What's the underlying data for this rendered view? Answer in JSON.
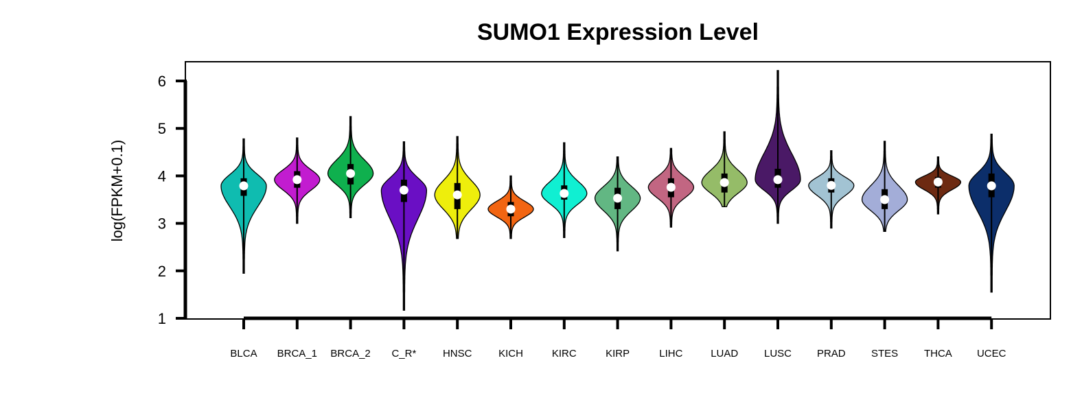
{
  "chart_data": {
    "type": "violin",
    "title": "SUMO1 Expression Level",
    "xlabel": "",
    "ylabel": "log(FPKM+0.1)",
    "ylim": [
      1,
      6.4
    ],
    "yticks": [
      "1",
      "2",
      "3",
      "4",
      "5",
      "6"
    ],
    "grid": false,
    "legend": "none",
    "categories": [
      "BLCA",
      "BRCA_1",
      "BRCA_2",
      "C_R*",
      "HNSC",
      "KICH",
      "KIRC",
      "KIRP",
      "LIHC",
      "LUAD",
      "LUSC",
      "PRAD",
      "STES",
      "THCA",
      "UCEC"
    ],
    "series": [
      {
        "category": "BLCA",
        "color": "#0fbcb0",
        "min": 1.95,
        "max": 4.78,
        "q1": 3.58,
        "q3": 3.95,
        "median": 3.79
      },
      {
        "category": "BRCA_1",
        "color": "#c21cd0",
        "min": 3.0,
        "max": 4.8,
        "q1": 3.75,
        "q3": 4.1,
        "median": 3.92
      },
      {
        "category": "BRCA_2",
        "color": "#0fb04e",
        "min": 3.12,
        "max": 5.25,
        "q1": 3.82,
        "q3": 4.25,
        "median": 4.05
      },
      {
        "category": "C_R*",
        "color": "#6a0fc4",
        "min": 1.17,
        "max": 4.72,
        "q1": 3.45,
        "q3": 3.92,
        "median": 3.7
      },
      {
        "category": "HNSC",
        "color": "#eeee0c",
        "min": 2.68,
        "max": 4.83,
        "q1": 3.3,
        "q3": 3.85,
        "median": 3.6
      },
      {
        "category": "KICH",
        "color": "#f26512",
        "min": 2.68,
        "max": 4.0,
        "q1": 3.15,
        "q3": 3.45,
        "median": 3.3
      },
      {
        "category": "KIRC",
        "color": "#10efd2",
        "min": 2.7,
        "max": 4.7,
        "q1": 3.5,
        "q3": 3.8,
        "median": 3.63
      },
      {
        "category": "KIRP",
        "color": "#62b783",
        "min": 2.42,
        "max": 4.4,
        "q1": 3.3,
        "q3": 3.75,
        "median": 3.53
      },
      {
        "category": "LIHC",
        "color": "#c26682",
        "min": 2.92,
        "max": 4.58,
        "q1": 3.55,
        "q3": 3.95,
        "median": 3.76
      },
      {
        "category": "LUAD",
        "color": "#95bc68",
        "min": 3.35,
        "max": 4.93,
        "q1": 3.65,
        "q3": 4.05,
        "median": 3.86
      },
      {
        "category": "LUSC",
        "color": "#4a1966",
        "min": 3.0,
        "max": 6.22,
        "q1": 3.75,
        "q3": 4.15,
        "median": 3.92
      },
      {
        "category": "PRAD",
        "color": "#a2c3d3",
        "min": 2.9,
        "max": 4.53,
        "q1": 3.65,
        "q3": 3.95,
        "median": 3.8
      },
      {
        "category": "STES",
        "color": "#a3add8",
        "min": 2.83,
        "max": 4.73,
        "q1": 3.3,
        "q3": 3.72,
        "median": 3.5
      },
      {
        "category": "THCA",
        "color": "#6d2a12",
        "min": 3.2,
        "max": 4.4,
        "q1": 3.75,
        "q3": 3.98,
        "median": 3.87
      },
      {
        "category": "UCEC",
        "color": "#0c2e6a",
        "min": 1.55,
        "max": 4.88,
        "q1": 3.55,
        "q3": 4.05,
        "median": 3.79
      }
    ]
  }
}
